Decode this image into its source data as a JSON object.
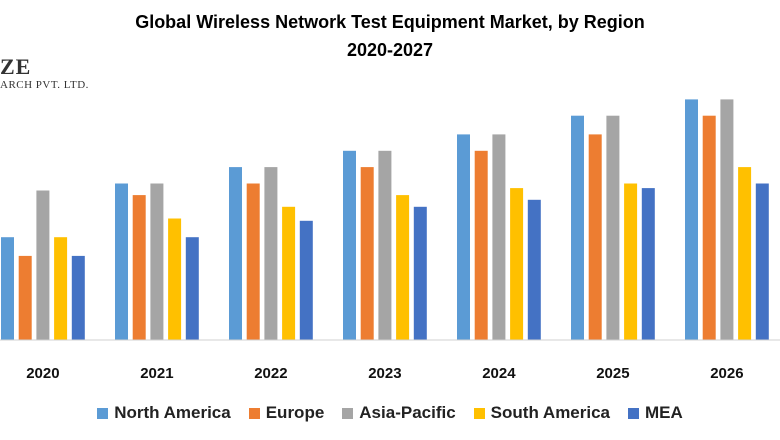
{
  "chart_data": {
    "type": "bar",
    "title": "Global Wireless Network Test Equipment Market, by Region",
    "subtitle": "2020-2027",
    "categories": [
      "2020",
      "2021",
      "2022",
      "2023",
      "2024",
      "2025",
      "2026"
    ],
    "series": [
      {
        "name": "North America",
        "color": "#5B9BD5",
        "values": [
          4.4,
          6.7,
          7.4,
          8.1,
          8.8,
          9.6,
          10.3
        ]
      },
      {
        "name": "Europe",
        "color": "#ED7D31",
        "values": [
          3.6,
          6.2,
          6.7,
          7.4,
          8.1,
          8.8,
          9.6
        ]
      },
      {
        "name": "Asia-Pacific",
        "color": "#A5A5A5",
        "values": [
          6.4,
          6.7,
          7.4,
          8.1,
          8.8,
          9.6,
          10.3
        ]
      },
      {
        "name": "South America",
        "color": "#FFC000",
        "values": [
          4.4,
          5.2,
          5.7,
          6.2,
          6.5,
          6.7,
          7.4
        ]
      },
      {
        "name": "MEA",
        "color": "#4472C4",
        "values": [
          3.6,
          4.4,
          5.1,
          5.7,
          6.0,
          6.5,
          6.7
        ]
      }
    ],
    "ylim": [
      0,
      11
    ],
    "grid": false,
    "legend_position": "bottom"
  },
  "logo": {
    "line1": "ZE",
    "line2": "ARCH PVT. LTD."
  }
}
